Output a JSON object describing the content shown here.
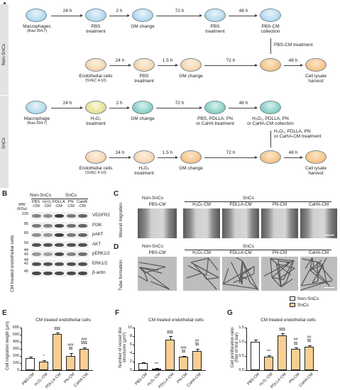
{
  "panels": {
    "a": "A",
    "b": "B",
    "c": "C",
    "d": "D",
    "e": "E",
    "f": "F",
    "g": "G"
  },
  "groups": {
    "non": "Non-SnCs",
    "sn": "SnCs"
  },
  "schemeA": {
    "non1": {
      "d1": "Macrophages",
      "d1s": "(Raw 264.7)",
      "a1": "24 h",
      "d2": "PBS\ntreatment",
      "a2": "2 h",
      "d3": "GM change",
      "a3": "72 h",
      "d4": "PBS\ntreatment",
      "a4": "48 h",
      "d5": "PBS-CM\ncollection",
      "transfer": "PBS-CM treatment"
    },
    "non2": {
      "d1": "Endothelial cells",
      "d1s": "(SVEC 4-10)",
      "a1": "24 h",
      "d2": "PBS\ntreatment",
      "a2": "1.5 h",
      "d3": "GM change",
      "a3": "72 h",
      "a4": "48 h",
      "d5": "Cell lysate\nharvest"
    },
    "sn1": {
      "d1": "Macrophage",
      "d1s": "(Raw 264.7)",
      "a1": "24 h",
      "d2": "H₂O₂\ntreatment",
      "a2": "2 h",
      "d3": "GM change",
      "a3": "72 h",
      "d4": "PBS, PDLLA, PN\nor CaHA treatment",
      "a4": "48 h",
      "d5": "H₂O₂, PDLLA, PN\nor CaHA-CM collection",
      "transfer": "H₂O₂, PDLLA, PN\nor CaHA-CM treatment"
    },
    "sn2": {
      "d1": "Endothelial cells",
      "d1s": "(SVEC 4-10)",
      "a1": "24 h",
      "d2": "H₂O₂\ntreatment",
      "a2": "1.5 h",
      "d3": "GM change",
      "a3": "72 h",
      "a4": "48 h",
      "d5": "Cell lysate\nharvest"
    }
  },
  "blot": {
    "side_label": "CM treated endothelial cells",
    "mw_header": "MW\n(KDa)",
    "groups": [
      "Non-SnCs",
      "SnCs"
    ],
    "lanes": [
      "PBS\n-CM",
      "H₂O₂\n-CM",
      "PDLLA\n-CM",
      "PN\n-CM",
      "CaHA\n-CM"
    ],
    "rows": [
      {
        "mw": "230",
        "label": "VEGFR2",
        "intensity": [
          0.55,
          0.5,
          0.9,
          0.6,
          0.7
        ]
      },
      {
        "mw": "85",
        "label": "PI3K",
        "intensity": [
          0.6,
          0.55,
          0.85,
          0.65,
          0.7
        ]
      },
      {
        "mw": "60",
        "label": "pAKT",
        "intensity": [
          0.5,
          0.45,
          0.9,
          0.6,
          0.7
        ]
      },
      {
        "mw": "59",
        "label": "AKT",
        "intensity": [
          0.8,
          0.8,
          0.8,
          0.8,
          0.8
        ]
      },
      {
        "mw": "44\n42",
        "label": "pERK1/2",
        "intensity": [
          0.45,
          0.4,
          0.85,
          0.55,
          0.65
        ]
      },
      {
        "mw": "44\n42",
        "label": "ERK1/2",
        "intensity": [
          0.8,
          0.8,
          0.8,
          0.8,
          0.8
        ]
      },
      {
        "mw": "45",
        "label": "β-actin",
        "intensity": [
          0.85,
          0.85,
          0.85,
          0.85,
          0.85
        ]
      }
    ]
  },
  "micro": {
    "conds": [
      "PBS-CM",
      "H₂O₂-CM",
      "PDLLA-CM",
      "PN-CM",
      "CaHA-CM"
    ],
    "c_side": "Wound migration",
    "d_side": "Tube formation"
  },
  "legend": {
    "non": "Non-SnCs",
    "sn": "SnCs"
  },
  "chart_data": [
    {
      "type": "bar",
      "title": "CM treated endothelial cells",
      "ylabel": "Cell migration length (μm)",
      "categories": [
        "PBS-CM",
        "H₂O₂-CM",
        "PDLLA-CM",
        "PN-CM",
        "CaHA-CM"
      ],
      "values": [
        170,
        125,
        510,
        200,
        300
      ],
      "errors": [
        25,
        15,
        20,
        40,
        20
      ],
      "ylim": [
        0,
        600
      ],
      "yticks": [
        "0",
        "100",
        "200",
        "300",
        "400",
        "500",
        "600"
      ],
      "groups": [
        "non",
        "sn",
        "sn",
        "sn",
        "sn"
      ],
      "annotations": [
        "",
        "*",
        "$$$",
        "###\n$$",
        "###\n$$$"
      ]
    },
    {
      "type": "bar",
      "title": "CM treated endothelial cells",
      "ylabel": "Number of vessel like\nstructures (μm²)",
      "categories": [
        "PBS-CM",
        "H₂O₂-CM",
        "PDLLA-CM",
        "PN-CM",
        "CaHA-CM"
      ],
      "values": [
        1.7,
        0.4,
        7.2,
        3.1,
        4.5
      ],
      "errors": [
        0.2,
        0.1,
        0.8,
        0.3,
        0.5
      ],
      "ylim": [
        0,
        10
      ],
      "yticks": [
        "0",
        "2",
        "4",
        "6",
        "8",
        "10"
      ],
      "groups": [
        "non",
        "sn",
        "sn",
        "sn",
        "sn"
      ],
      "annotations": [
        "",
        "***",
        "$$$",
        "###\n$$",
        "##\n$$"
      ]
    },
    {
      "type": "bar",
      "title": "CM treated endothelial cells",
      "ylabel": "Cell proliferation ratio\n(fold of first bar)",
      "categories": [
        "PBS-CM",
        "H₂O₂-CM",
        "PDLLA-CM",
        "PN-CM",
        "CaHA-CM"
      ],
      "values": [
        1.0,
        0.48,
        1.22,
        0.75,
        0.82
      ],
      "errors": [
        0.08,
        0.05,
        0.08,
        0.04,
        0.06
      ],
      "ylim": [
        0,
        1.5
      ],
      "yticks": [
        "0.0",
        "0.5",
        "1.0",
        "1.5"
      ],
      "groups": [
        "non",
        "sn",
        "sn",
        "sn",
        "sn"
      ],
      "annotations": [
        "",
        "***",
        "$$$",
        "##\n$$",
        "##\n$$"
      ]
    }
  ]
}
